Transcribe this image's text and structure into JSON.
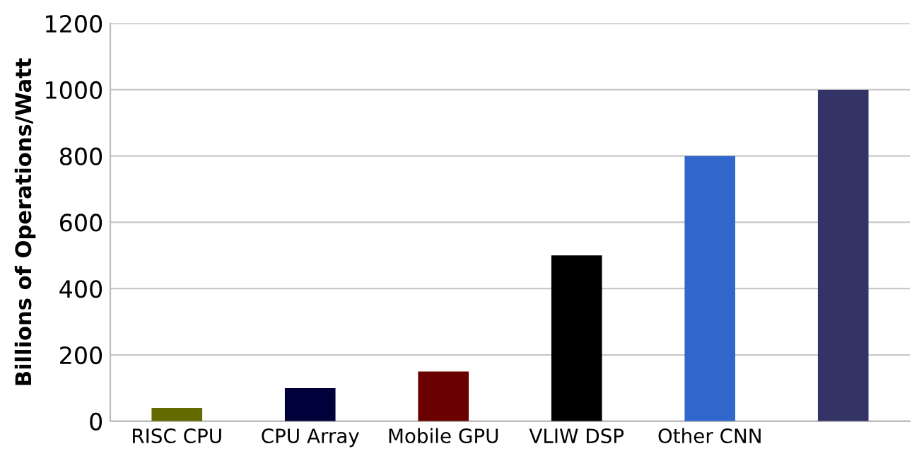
{
  "chart_data": {
    "type": "bar",
    "ylabel": "Billions of Operations/Watt",
    "categories": [
      "RISC CPU",
      "CPU Array",
      "Mobile GPU",
      "VLIW DSP",
      "Other CNN",
      null
    ],
    "values": [
      40,
      100,
      150,
      500,
      800,
      1000
    ],
    "colors": [
      "#626a00",
      "#00003a",
      "#6a0000",
      "#000000",
      "#3166cc",
      "#333366"
    ],
    "ylim": [
      0,
      1200
    ],
    "yticks": [
      0,
      200,
      400,
      600,
      800,
      1000,
      1200
    ],
    "grid": "y"
  }
}
